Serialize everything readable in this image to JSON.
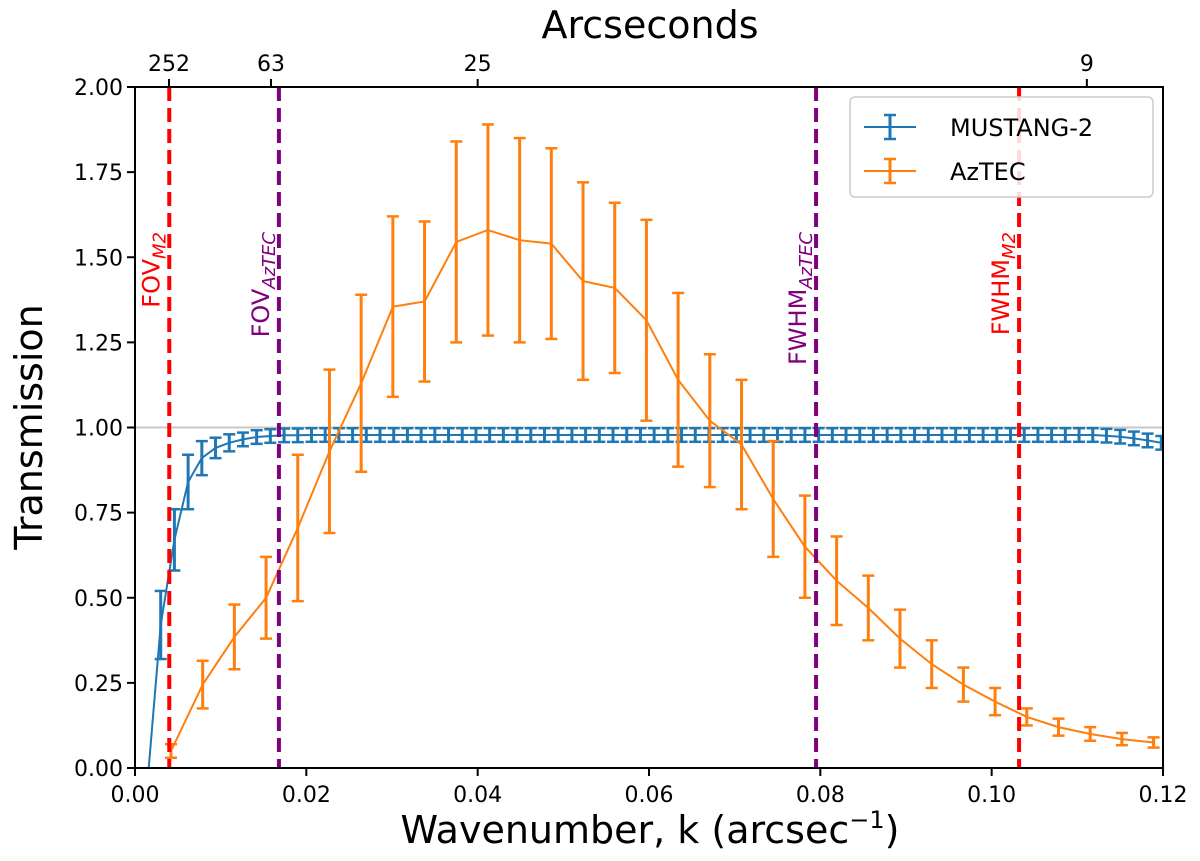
{
  "chart_data": {
    "type": "line",
    "title": "",
    "xlabel": "Wavenumber, k (arcsec",
    "xlabel_sup": "−1",
    "xlabel_suffix": ")",
    "ylabel": "Transmission",
    "top_xlabel": "Arcseconds",
    "xlim": [
      0.0,
      0.12
    ],
    "ylim": [
      0.0,
      2.0
    ],
    "x_tick_labels": [
      "0.00",
      "0.02",
      "0.04",
      "0.06",
      "0.08",
      "0.10",
      "0.12"
    ],
    "y_tick_labels": [
      "0.00",
      "0.25",
      "0.50",
      "0.75",
      "1.00",
      "1.25",
      "1.50",
      "1.75",
      "2.00"
    ],
    "top_tick_labels": [
      "252",
      "63",
      "25",
      "9"
    ],
    "top_tick_arcsec": [
      252,
      63,
      25,
      9
    ],
    "reference_line": 1.0,
    "grid": false,
    "legend_position": "top-right",
    "vertical_lines": [
      {
        "label": "FOV",
        "sub": "M2",
        "x": 0.004,
        "color": "#ff0000"
      },
      {
        "label": "FOV",
        "sub": "AzTEC",
        "x": 0.0168,
        "color": "#800080"
      },
      {
        "label": "FWHM",
        "sub": "AzTEC",
        "x": 0.0795,
        "color": "#800080"
      },
      {
        "label": "FWHM",
        "sub": "M2",
        "x": 0.1032,
        "color": "#ff0000"
      }
    ],
    "series": [
      {
        "name": "MUSTANG-2",
        "color": "#1f77b4",
        "x": [
          0.0016,
          0.003,
          0.0046,
          0.0062,
          0.0078,
          0.0094,
          0.011,
          0.0126,
          0.0142,
          0.0158,
          0.0174,
          0.019,
          0.0206,
          0.0222,
          0.0238,
          0.0254,
          0.027,
          0.0286,
          0.0302,
          0.0318,
          0.0334,
          0.035,
          0.0366,
          0.0382,
          0.0398,
          0.0414,
          0.043,
          0.0446,
          0.0462,
          0.0478,
          0.0494,
          0.051,
          0.0526,
          0.0542,
          0.0558,
          0.0574,
          0.059,
          0.0606,
          0.0622,
          0.0638,
          0.0654,
          0.067,
          0.0686,
          0.0702,
          0.0718,
          0.0734,
          0.075,
          0.0766,
          0.0782,
          0.0798,
          0.0814,
          0.083,
          0.0846,
          0.0862,
          0.0878,
          0.0894,
          0.091,
          0.0926,
          0.0942,
          0.0958,
          0.0974,
          0.099,
          0.1006,
          0.1022,
          0.1038,
          0.1054,
          0.107,
          0.1086,
          0.1102,
          0.1118,
          0.1134,
          0.115,
          0.1166,
          0.1182,
          0.1198
        ],
        "y": [
          0.0,
          0.42,
          0.67,
          0.84,
          0.91,
          0.94,
          0.955,
          0.965,
          0.972,
          0.975,
          0.977,
          0.977,
          0.978,
          0.978,
          0.978,
          0.978,
          0.978,
          0.978,
          0.978,
          0.978,
          0.978,
          0.978,
          0.978,
          0.978,
          0.978,
          0.978,
          0.978,
          0.978,
          0.978,
          0.978,
          0.978,
          0.978,
          0.978,
          0.978,
          0.978,
          0.978,
          0.978,
          0.978,
          0.978,
          0.978,
          0.978,
          0.978,
          0.978,
          0.978,
          0.978,
          0.978,
          0.978,
          0.978,
          0.978,
          0.978,
          0.978,
          0.978,
          0.978,
          0.978,
          0.978,
          0.978,
          0.978,
          0.978,
          0.978,
          0.978,
          0.978,
          0.978,
          0.978,
          0.978,
          0.978,
          0.978,
          0.978,
          0.978,
          0.978,
          0.978,
          0.976,
          0.973,
          0.968,
          0.962,
          0.955
        ],
        "err": [
          0.0,
          0.1,
          0.09,
          0.08,
          0.05,
          0.03,
          0.025,
          0.02,
          0.02,
          0.02,
          0.02,
          0.02,
          0.02,
          0.02,
          0.02,
          0.02,
          0.02,
          0.02,
          0.02,
          0.02,
          0.02,
          0.02,
          0.02,
          0.02,
          0.02,
          0.02,
          0.02,
          0.02,
          0.02,
          0.02,
          0.02,
          0.02,
          0.02,
          0.02,
          0.02,
          0.02,
          0.02,
          0.02,
          0.02,
          0.02,
          0.02,
          0.02,
          0.02,
          0.02,
          0.02,
          0.02,
          0.02,
          0.02,
          0.02,
          0.02,
          0.02,
          0.02,
          0.02,
          0.02,
          0.02,
          0.02,
          0.02,
          0.02,
          0.02,
          0.02,
          0.02,
          0.02,
          0.02,
          0.02,
          0.02,
          0.02,
          0.02,
          0.02,
          0.02,
          0.02,
          0.02,
          0.02,
          0.02,
          0.02,
          0.02
        ]
      },
      {
        "name": "AzTEC",
        "color": "#ff7f0e",
        "x": [
          0.0042,
          0.0079,
          0.0116,
          0.0153,
          0.019,
          0.0227,
          0.0264,
          0.0301,
          0.0338,
          0.0375,
          0.0412,
          0.0449,
          0.0486,
          0.0523,
          0.056,
          0.0597,
          0.0634,
          0.0671,
          0.0708,
          0.0745,
          0.0782,
          0.0819,
          0.0856,
          0.0893,
          0.093,
          0.0967,
          0.1004,
          0.1041,
          0.1078,
          0.1115,
          0.1152,
          0.1189
        ],
        "y": [
          0.05,
          0.245,
          0.385,
          0.5,
          0.705,
          0.93,
          1.13,
          1.355,
          1.37,
          1.545,
          1.58,
          1.55,
          1.54,
          1.43,
          1.41,
          1.315,
          1.14,
          1.02,
          0.95,
          0.79,
          0.65,
          0.55,
          0.47,
          0.38,
          0.305,
          0.245,
          0.195,
          0.15,
          0.12,
          0.1,
          0.085,
          0.075
        ],
        "err": [
          0.02,
          0.07,
          0.095,
          0.12,
          0.215,
          0.24,
          0.26,
          0.265,
          0.235,
          0.295,
          0.31,
          0.3,
          0.28,
          0.29,
          0.25,
          0.295,
          0.255,
          0.195,
          0.19,
          0.17,
          0.15,
          0.13,
          0.095,
          0.085,
          0.07,
          0.05,
          0.04,
          0.025,
          0.025,
          0.02,
          0.018,
          0.015
        ]
      }
    ]
  }
}
